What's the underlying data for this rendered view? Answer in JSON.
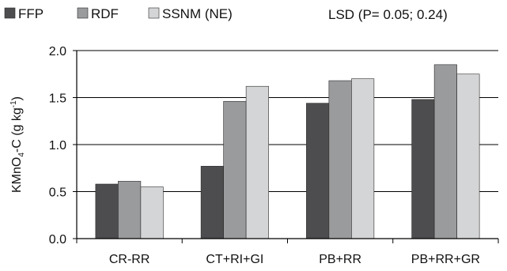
{
  "chart_data": {
    "type": "bar",
    "categories": [
      "CR-RR",
      "CT+RI+GI",
      "PB+RR",
      "PB+RR+GR"
    ],
    "series": [
      {
        "name": "FFP",
        "color": "#4d4d4f",
        "values": [
          0.58,
          0.77,
          1.44,
          1.48
        ]
      },
      {
        "name": "RDF",
        "color": "#9a9b9d",
        "values": [
          0.61,
          1.46,
          1.68,
          1.85
        ]
      },
      {
        "name": "SSNM (NE)",
        "color": "#d4d5d7",
        "values": [
          0.55,
          1.62,
          1.7,
          1.75
        ]
      }
    ],
    "ylabel_main": "KMnO",
    "ylabel_sub": "4",
    "ylabel_mid": "-C (g kg",
    "ylabel_sup": "-1",
    "ylabel_end": ")",
    "ylim": [
      0,
      2.0
    ],
    "yticks": [
      "0.0",
      "0.5",
      "1.0",
      "1.5",
      "2.0"
    ],
    "ytick_values": [
      0,
      0.5,
      1.0,
      1.5,
      2.0
    ],
    "grid": true,
    "legend_position": "top",
    "annotation": "LSD (P= 0.05; 0.24)"
  }
}
